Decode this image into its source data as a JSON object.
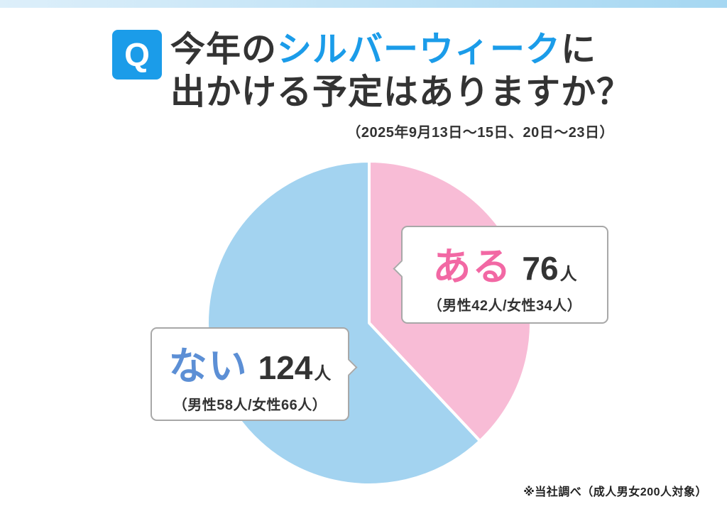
{
  "top_bar": {
    "color_left": "#ddeffa",
    "color_right": "#a5d7f2"
  },
  "header": {
    "q_badge": "Q",
    "q_badge_color": "#1b9ce9",
    "title_prefix": "今年の",
    "title_highlight": "シルバーウィーク",
    "title_highlight_color": "#1b9ce9",
    "title_suffix": "に",
    "title_line2": "出かける予定はありますか？",
    "subtitle": "（2025年9月13日〜15日、20日〜23日）"
  },
  "chart_data": {
    "type": "pie",
    "title": "今年のシルバーウィークに出かける予定はありますか？",
    "subtitle": "（2025年9月13日〜15日、20日〜23日）",
    "total_respondents": 200,
    "start_angle_deg": -90,
    "direction": "clockwise",
    "legend_position": "callout-boxes",
    "separator_color": "#ffffff",
    "slices": [
      {
        "label": "ある",
        "value": 76,
        "percent": 38,
        "unit": "人",
        "breakdown": "（男性42人/女性34人）",
        "color": "#f8bcd6",
        "label_color": "#f268a4"
      },
      {
        "label": "ない",
        "value": 124,
        "percent": 62,
        "unit": "人",
        "breakdown": "（男性58人/女性66人）",
        "color": "#a3d3f0",
        "label_color": "#5c8fd5"
      }
    ]
  },
  "footer": {
    "note": "※当社調べ（成人男女200人対象）"
  }
}
